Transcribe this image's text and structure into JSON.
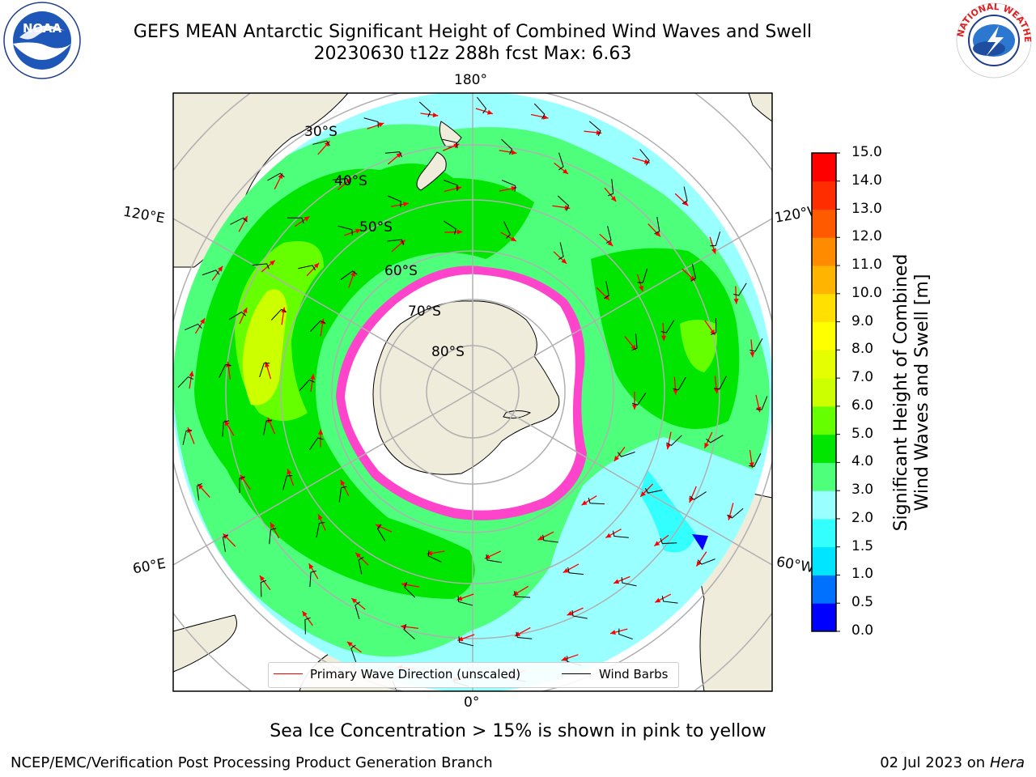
{
  "header": {
    "title_line1": "GEFS MEAN Antarctic Significant Height of Combined Wind Waves and Swell",
    "title_line2": "20230630 t12z 288h fcst   Max: 6.63"
  },
  "logos": {
    "left": {
      "name": "NOAA",
      "ring_text": "NATIONAL OCEANIC AND ATMOSPHERIC ADMINISTRATION · U.S. DEPARTMENT OF COMMERCE"
    },
    "right": {
      "name": "NATIONAL WEATHER SERVICE"
    }
  },
  "map": {
    "projection": "south-polar-stereographic",
    "lat_labels": [
      "30°S",
      "40°S",
      "50°S",
      "60°S",
      "70°S",
      "80°S"
    ],
    "lon_labels": {
      "top": "180°",
      "bottom": "0°",
      "left_upper": "120°E",
      "left_lower": "60°E",
      "right_upper": "120°W",
      "right_lower": "60°W"
    },
    "colors": {
      "land": "#efecdc",
      "sea_ice": "#ffffff",
      "ice_edge": "#ff44cc",
      "wave_arrow": "#ff0000",
      "wind_barb": "#000000",
      "graticule": "#b0b0b0"
    }
  },
  "legend": {
    "wave_label": "Primary Wave Direction (unscaled)",
    "barb_label": "Wind Barbs"
  },
  "colorbar": {
    "label": "Significant Height of Combined\nWind Waves and Swell [m]",
    "ticks": [
      "0.0",
      "0.5",
      "1.0",
      "1.5",
      "2.0",
      "3.0",
      "4.0",
      "5.0",
      "6.0",
      "7.0",
      "8.0",
      "9.0",
      "10.0",
      "11.0",
      "12.0",
      "13.0",
      "14.0",
      "15.0"
    ],
    "colors": [
      "#0000ff",
      "#0070ff",
      "#00e5ff",
      "#33ffff",
      "#99ffff",
      "#4dff7a",
      "#00e600",
      "#66ff00",
      "#ccff00",
      "#e6ff00",
      "#ffff00",
      "#ffe000",
      "#ffb400",
      "#ff8c00",
      "#ff5a00",
      "#ff2d00",
      "#ff0000"
    ]
  },
  "footer": {
    "note": "Sea Ice Concentration > 15% is shown in pink to yellow",
    "left": "NCEP/EMC/Verification Post Processing Product Generation Branch",
    "date": "02 Jul 2023 on ",
    "host": "Hera"
  }
}
